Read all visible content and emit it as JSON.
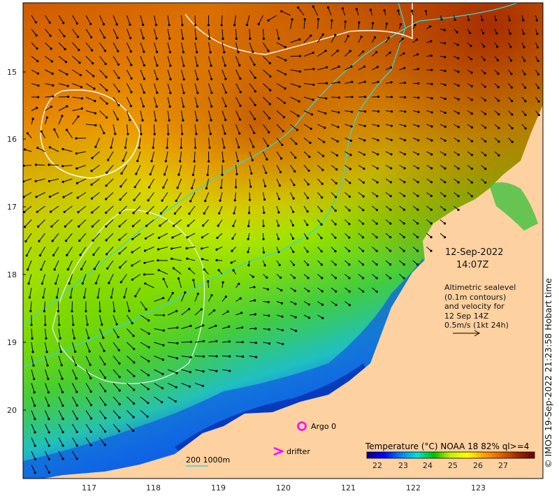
{
  "map": {
    "title_date": "12-Sep-2022",
    "title_time": "14:07Z",
    "note_lines": [
      "Altimetric sealevel",
      "(0.1m contours)",
      "and velocity for",
      "12 Sep 14Z",
      "0.5m/s (1kt 24h)"
    ],
    "copyright": "© IMOS 19-Sep-2022 21:23:58 Hobart time",
    "y_ticks": [
      "15",
      "16",
      "17",
      "18",
      "19",
      "20"
    ],
    "x_ticks": [
      "117",
      "118",
      "119",
      "120",
      "121",
      "122",
      "123"
    ],
    "legend": {
      "argo_label": "Argo 0",
      "drifter_label": "drifter",
      "isobath_label": "200  1000m",
      "argo_color": "#ff00ff",
      "drifter_color": "#ff00ff",
      "isobath_color": "#36d6d6"
    },
    "colorbar": {
      "title": "Temperature (°C) NOAA 18 82% ql>=4",
      "ticks": [
        "22",
        "23",
        "24",
        "25",
        "26",
        "27"
      ],
      "colors": [
        "#00008a",
        "#0000ff",
        "#0080ff",
        "#00e0e0",
        "#00c000",
        "#c8f000",
        "#ffff00",
        "#ffa000",
        "#e06000",
        "#a02800",
        "#6a0000"
      ]
    },
    "land_color": "#fdd1a0"
  }
}
